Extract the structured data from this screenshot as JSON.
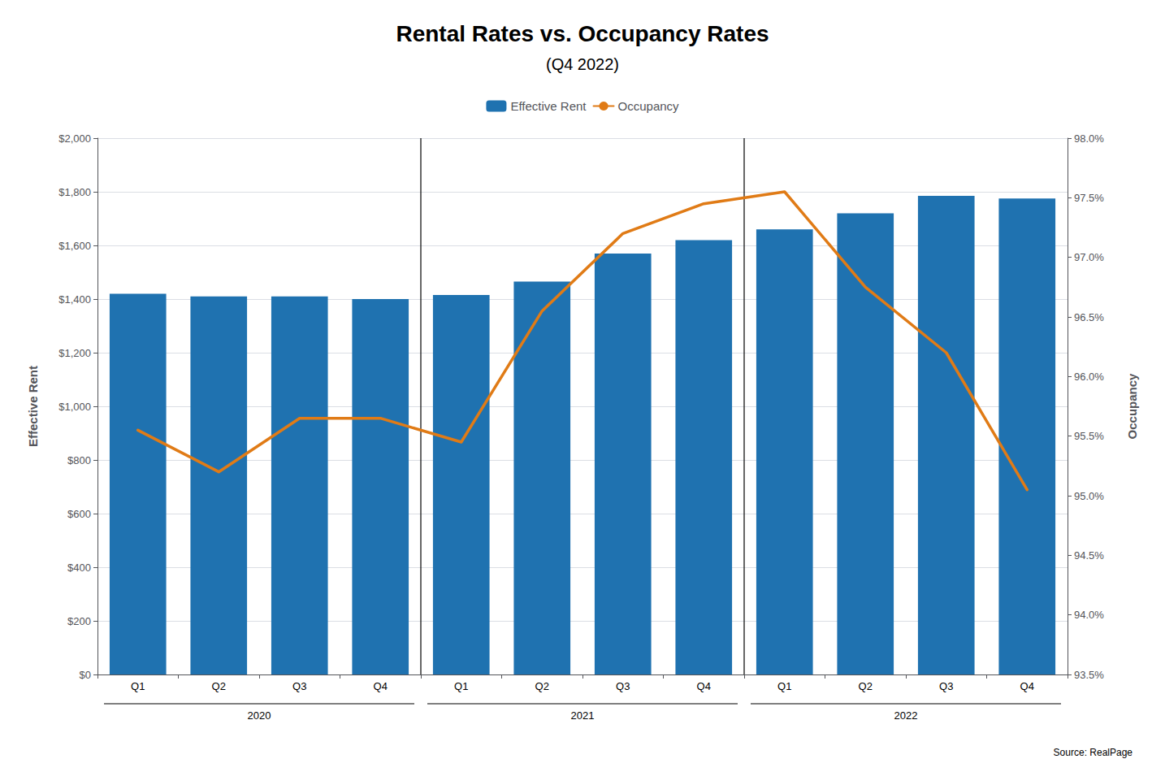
{
  "chart_data": {
    "type": "bar",
    "title": "Rental Rates vs. Occupancy Rates",
    "subtitle": "(Q4 2022)",
    "source": "Source: RealPage",
    "categories": [
      "Q1",
      "Q2",
      "Q3",
      "Q4",
      "Q1",
      "Q2",
      "Q3",
      "Q4",
      "Q1",
      "Q2",
      "Q3",
      "Q4"
    ],
    "category_groups": [
      "2020",
      "2021",
      "2022"
    ],
    "ylabel": "Effective Rent",
    "y2label": "Occupancy",
    "series": [
      {
        "name": "Effective Rent",
        "type": "bar",
        "color": "#1F72B0",
        "values": [
          1420,
          1410,
          1410,
          1400,
          1415,
          1465,
          1570,
          1620,
          1660,
          1720,
          1785,
          1775
        ]
      },
      {
        "name": "Occupancy",
        "type": "line",
        "axis": "y2",
        "color": "#E07B16",
        "values": [
          95.55,
          95.2,
          95.65,
          95.65,
          95.45,
          96.55,
          97.2,
          97.45,
          97.55,
          96.75,
          96.2,
          95.05
        ]
      }
    ],
    "ylim": [
      0,
      2000
    ],
    "yticks": [
      {
        "value": 0,
        "label": "$0"
      },
      {
        "value": 200,
        "label": "$200"
      },
      {
        "value": 400,
        "label": "$400"
      },
      {
        "value": 600,
        "label": "$600"
      },
      {
        "value": 800,
        "label": "$800"
      },
      {
        "value": 1000,
        "label": "$1,000"
      },
      {
        "value": 1200,
        "label": "$1,200"
      },
      {
        "value": 1400,
        "label": "$1,400"
      },
      {
        "value": 1600,
        "label": "$1,600"
      },
      {
        "value": 1800,
        "label": "$1,800"
      },
      {
        "value": 2000,
        "label": "$2,000"
      }
    ],
    "y2lim": [
      93.5,
      98.0
    ],
    "y2ticks": [
      {
        "value": 93.5,
        "label": "93.5%"
      },
      {
        "value": 94.0,
        "label": "94.0%"
      },
      {
        "value": 94.5,
        "label": "94.5%"
      },
      {
        "value": 95.0,
        "label": "95.0%"
      },
      {
        "value": 95.5,
        "label": "95.5%"
      },
      {
        "value": 96.0,
        "label": "96.0%"
      },
      {
        "value": 96.5,
        "label": "96.5%"
      },
      {
        "value": 97.0,
        "label": "97.0%"
      },
      {
        "value": 97.5,
        "label": "97.5%"
      },
      {
        "value": 98.0,
        "label": "98.0%"
      }
    ],
    "grid": true,
    "legend": "top"
  }
}
